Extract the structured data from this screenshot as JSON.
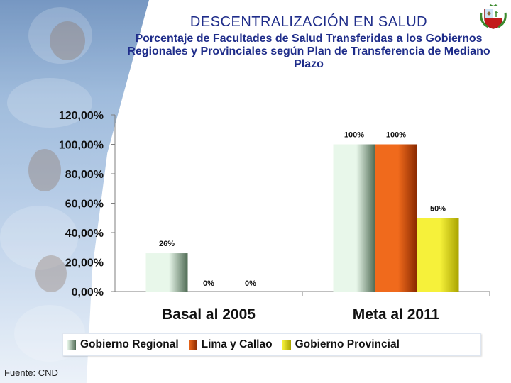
{
  "header": {
    "title": "DESCENTRALIZACIÓN EN SALUD",
    "subtitle": "Porcentaje de Facultades de Salud Transferidas a los Gobiernos Regionales y Provinciales según Plan de Transferencia de Mediano Plazo"
  },
  "footer": {
    "source": "Fuente: CND"
  },
  "emblem": {
    "icon": "peru-coat-of-arms-icon"
  },
  "chart_data": {
    "type": "bar",
    "title": "Porcentaje de Facultades de Salud Transferidas a los Gobiernos Regionales y Provinciales según Plan de Transferencia de Mediano Plazo",
    "categories": [
      "Basal al 2005",
      "Meta al 2011"
    ],
    "series": [
      {
        "name": "Gobierno Regional",
        "values": [
          26,
          100
        ],
        "labels": [
          "26%",
          "100%"
        ],
        "color_light": "#e8f7ea",
        "color_dark": "#4f6b54"
      },
      {
        "name": "Lima y Callao",
        "values": [
          0,
          100
        ],
        "labels": [
          "0%",
          "100%"
        ],
        "color_light": "#f06a1c",
        "color_dark": "#8a2a00"
      },
      {
        "name": "Gobierno Provincial",
        "values": [
          0,
          50
        ],
        "labels": [
          "0%",
          "50%"
        ],
        "color_light": "#f6f13a",
        "color_dark": "#a9a300"
      }
    ],
    "ylim": [
      0,
      120
    ],
    "yticks": [
      0,
      20,
      40,
      60,
      80,
      100,
      120
    ],
    "ytick_labels": [
      "0,00%",
      "20,00%",
      "40,00%",
      "60,00%",
      "80,00%",
      "100,00%",
      "120,00%"
    ],
    "xlabel": "",
    "ylabel": "",
    "grid": false,
    "legend_position": "bottom"
  }
}
